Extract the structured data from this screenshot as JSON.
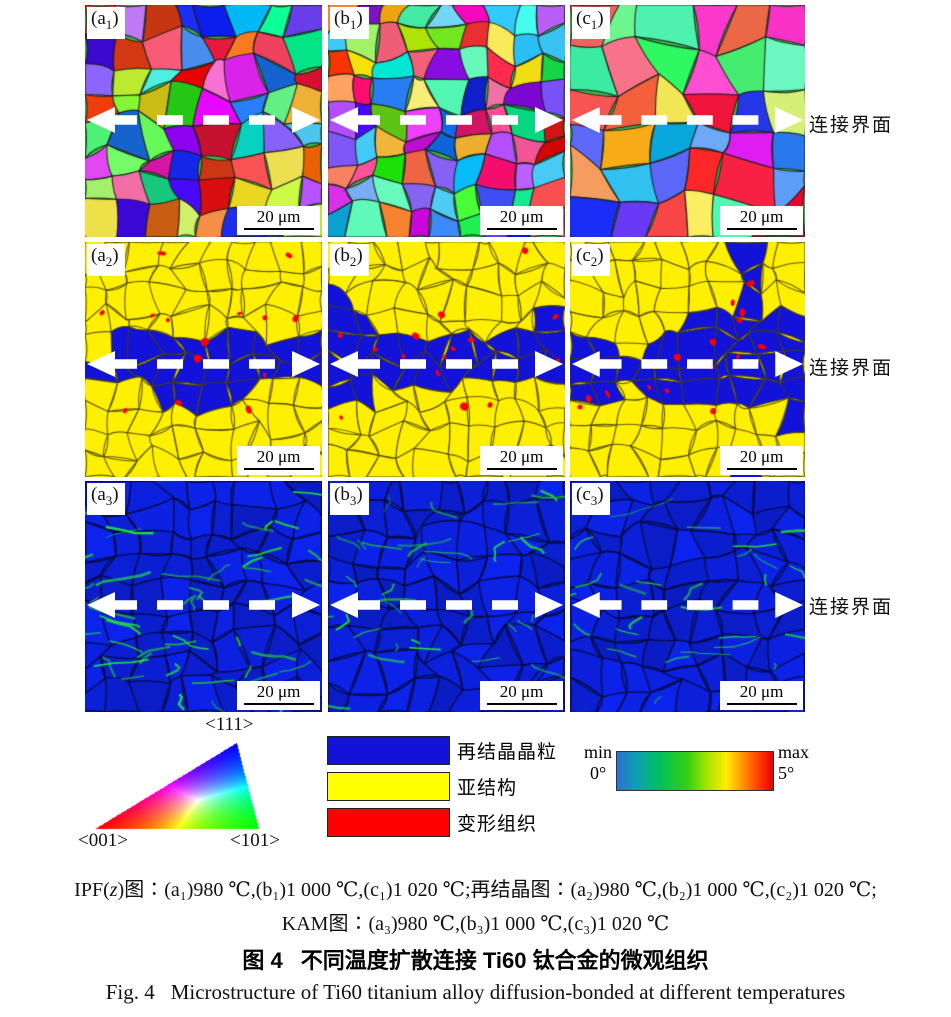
{
  "figure": {
    "interface_label": "连接界面",
    "scale_label": "20 μm"
  },
  "panels": [
    {
      "label_prefix": "(a",
      "label_sub": "1",
      "label_suffix": ")"
    },
    {
      "label_prefix": "(b",
      "label_sub": "1",
      "label_suffix": ")"
    },
    {
      "label_prefix": "(c",
      "label_sub": "1",
      "label_suffix": ")"
    },
    {
      "label_prefix": "(a",
      "label_sub": "2",
      "label_suffix": ")"
    },
    {
      "label_prefix": "(b",
      "label_sub": "2",
      "label_suffix": ")"
    },
    {
      "label_prefix": "(c",
      "label_sub": "2",
      "label_suffix": ")"
    },
    {
      "label_prefix": "(a",
      "label_sub": "3",
      "label_suffix": ")"
    },
    {
      "label_prefix": "(b",
      "label_sub": "3",
      "label_suffix": ")"
    },
    {
      "label_prefix": "(c",
      "label_sub": "3",
      "label_suffix": ")"
    }
  ],
  "legends": {
    "ipf_triangle": {
      "top": "<111>",
      "bottom_left": "<001>",
      "bottom_right": "<101>"
    },
    "recrystallization_items": [
      {
        "color": "#1212d8",
        "label": "再结晶晶粒"
      },
      {
        "color": "#ffff00",
        "label": "亚结构"
      },
      {
        "color": "#fe0000",
        "label": "变形组织"
      }
    ],
    "kam_scale": {
      "min_label": "min",
      "min_value": "0°",
      "max_label": "max",
      "max_value": "5°",
      "min_color": "#2b6fd0",
      "max_color": "#e80000"
    }
  },
  "captions": {
    "line1_prefix": "IPF(",
    "line1_italic": "z",
    "line1_rest": ")图∶(a₁)980 ℃,(b₁)1 000 ℃,(c₁)1 020 ℃;再结晶图∶(a₂)980 ℃,(b₂)1 000 ℃,(c₂)1 020 ℃;",
    "line2": "KAM图∶(a₃)980 ℃,(b₃)1 000 ℃,(c₃)1 020 ℃",
    "zh_fig_no": "图 4",
    "zh_title": "不同温度扩散连接 Ti60 钛合金的微观组织",
    "en_fig_no": "Fig. 4",
    "en_title": "Microstructure of Ti60 titanium alloy diffusion-bonded at different temperatures"
  }
}
